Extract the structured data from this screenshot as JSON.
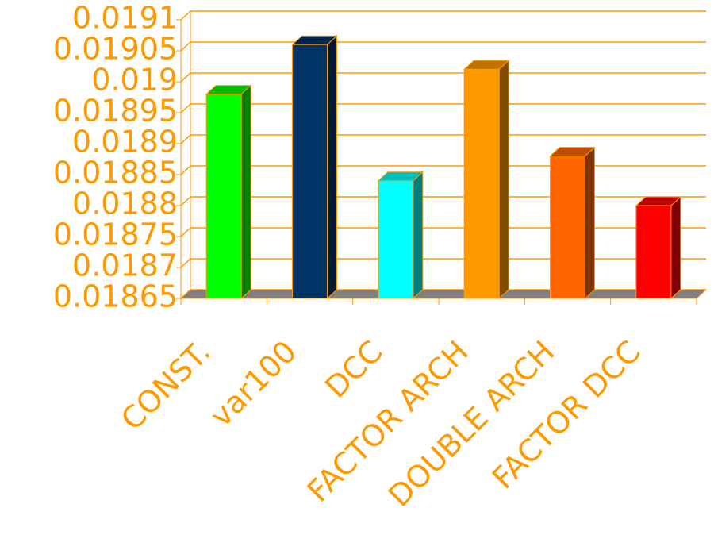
{
  "chart_data": {
    "type": "bar3d",
    "categories": [
      "CONST.",
      "var100",
      "DCC",
      "FACTOR ARCH",
      "DOUBLE ARCH",
      "FACTOR DCC"
    ],
    "values": [
      0.01898,
      0.01906,
      0.01884,
      0.01902,
      0.01888,
      0.0188
    ],
    "colors": [
      "#00ff00",
      "#003366",
      "#00ffff",
      "#ff9900",
      "#ff6600",
      "#ff0000"
    ],
    "ylim": [
      0.01865,
      0.0191
    ],
    "yticks": [
      0.01865,
      0.0187,
      0.01875,
      0.0188,
      0.01885,
      0.0189,
      0.01895,
      0.019,
      0.01905,
      0.0191
    ],
    "grid": true
  }
}
